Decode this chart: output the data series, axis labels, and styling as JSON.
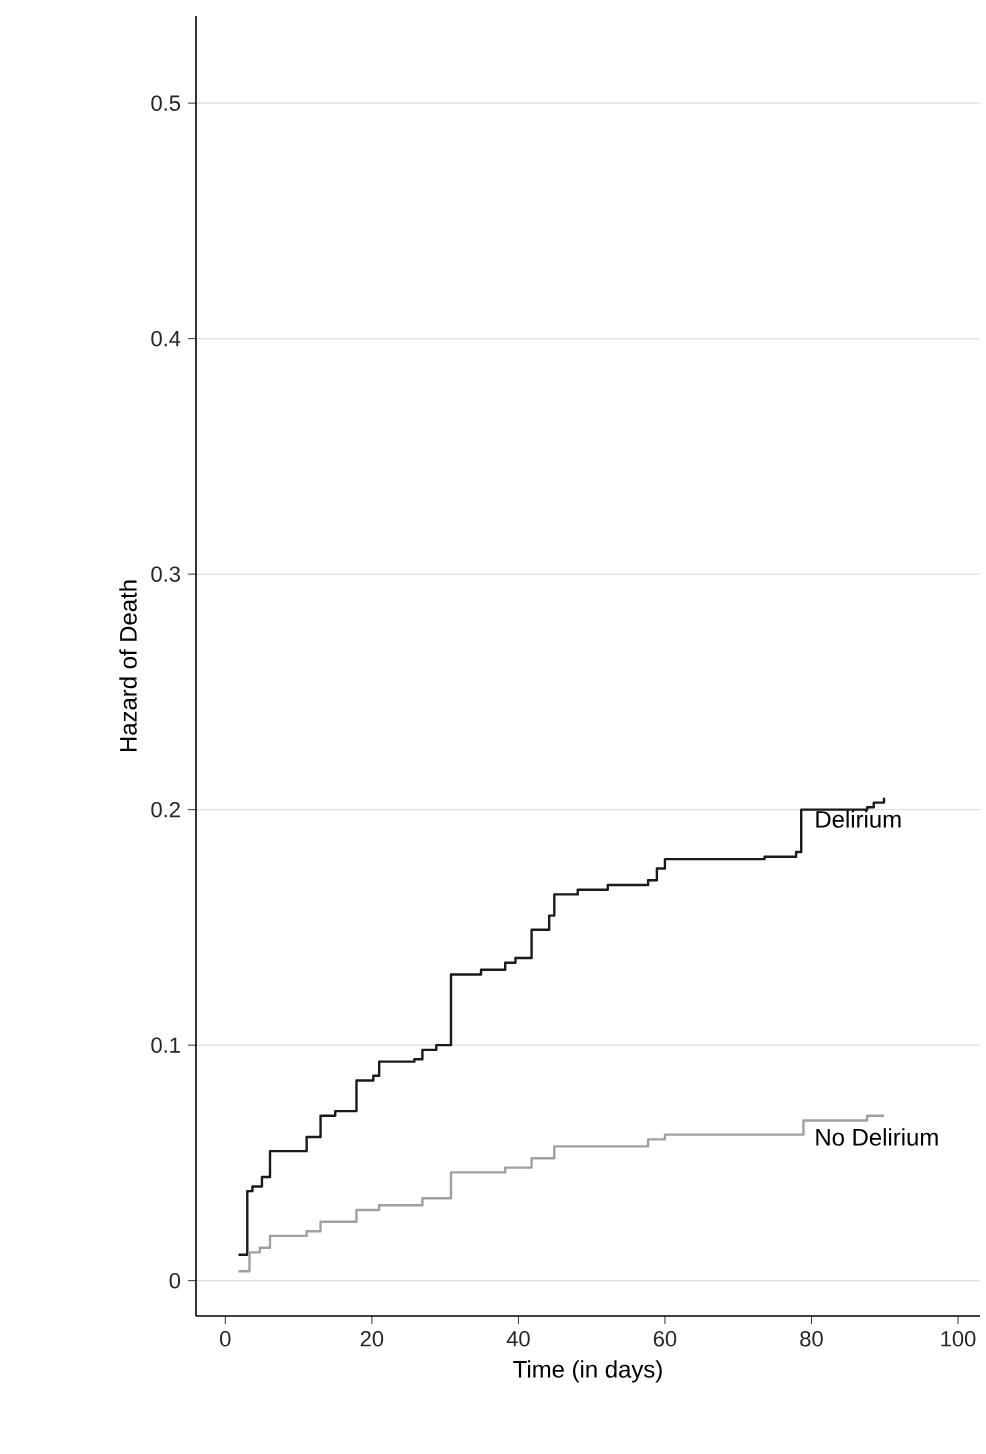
{
  "chart_data": {
    "type": "step",
    "xlabel": "Time (in days)",
    "ylabel": "Hazard of Death",
    "xlim": [
      -4,
      103
    ],
    "ylim": [
      -0.015,
      0.537
    ],
    "xticks": [
      0,
      20,
      40,
      60,
      80,
      100
    ],
    "yticks": [
      0,
      0.1,
      0.2,
      0.3,
      0.4,
      0.5
    ],
    "grid": "y",
    "series": [
      {
        "name": "Delirium",
        "color": "#1a1a1a",
        "x": [
          1.8,
          3.0,
          3.7,
          5.0,
          6.1,
          11.1,
          13.0,
          15.0,
          17.9,
          20.2,
          21.0,
          25.8,
          26.9,
          28.8,
          30.8,
          34.9,
          38.2,
          39.6,
          41.8,
          44.2,
          44.9,
          48.1,
          52.2,
          57.7,
          58.9,
          60.0,
          73.6,
          77.9,
          78.6,
          87.6,
          88.5,
          89.9
        ],
        "values": [
          0.011,
          0.038,
          0.04,
          0.044,
          0.055,
          0.061,
          0.07,
          0.072,
          0.085,
          0.087,
          0.093,
          0.094,
          0.098,
          0.1,
          0.13,
          0.132,
          0.135,
          0.137,
          0.149,
          0.155,
          0.164,
          0.166,
          0.168,
          0.17,
          0.175,
          0.179,
          0.18,
          0.182,
          0.2,
          0.201,
          0.203,
          0.205
        ]
      },
      {
        "name": "No Delirium",
        "color": "#a0a0a0",
        "x": [
          1.8,
          3.3,
          4.7,
          6.1,
          11.1,
          13.0,
          17.9,
          21.0,
          26.9,
          30.8,
          38.2,
          41.8,
          44.9,
          57.7,
          60.0,
          78.9,
          87.6,
          89.9
        ],
        "values": [
          0.004,
          0.012,
          0.014,
          0.019,
          0.021,
          0.025,
          0.03,
          0.032,
          0.035,
          0.046,
          0.048,
          0.052,
          0.057,
          0.06,
          0.062,
          0.068,
          0.07,
          0.07
        ]
      }
    ]
  }
}
